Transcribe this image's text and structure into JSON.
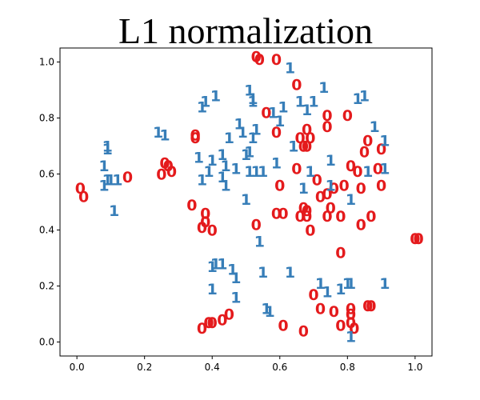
{
  "chart_data": {
    "type": "scatter",
    "title": "L1 normalization",
    "xlabel": "",
    "ylabel": "",
    "xlim": [
      -0.05,
      1.05
    ],
    "ylim": [
      -0.05,
      1.05
    ],
    "xticks": [
      0.0,
      0.2,
      0.4,
      0.6,
      0.8,
      1.0
    ],
    "xtick_labels": [
      "0.0",
      "0.2",
      "0.4",
      "0.6",
      "0.8",
      "1.0"
    ],
    "yticks": [
      0.0,
      0.2,
      0.4,
      0.6,
      0.8,
      1.0
    ],
    "ytick_labels": [
      "0.0",
      "0.2",
      "0.4",
      "0.6",
      "0.8",
      "1.0"
    ],
    "grid": false,
    "legend": "none",
    "series": [
      {
        "label": "0",
        "color": "#e41a1c",
        "points": [
          [
            0.53,
            1.02
          ],
          [
            0.54,
            1.01
          ],
          [
            0.59,
            1.01
          ],
          [
            0.65,
            0.92
          ],
          [
            0.56,
            0.82
          ],
          [
            0.74,
            0.81
          ],
          [
            0.8,
            0.81
          ],
          [
            0.74,
            0.77
          ],
          [
            0.59,
            0.75
          ],
          [
            0.68,
            0.76
          ],
          [
            0.35,
            0.74
          ],
          [
            0.35,
            0.73
          ],
          [
            0.66,
            0.73
          ],
          [
            0.69,
            0.73
          ],
          [
            0.67,
            0.7
          ],
          [
            0.68,
            0.7
          ],
          [
            0.86,
            0.72
          ],
          [
            0.9,
            0.69
          ],
          [
            0.85,
            0.68
          ],
          [
            0.26,
            0.64
          ],
          [
            0.27,
            0.63
          ],
          [
            0.28,
            0.61
          ],
          [
            0.25,
            0.6
          ],
          [
            0.15,
            0.59
          ],
          [
            0.65,
            0.62
          ],
          [
            0.81,
            0.63
          ],
          [
            0.83,
            0.61
          ],
          [
            0.89,
            0.62
          ],
          [
            0.71,
            0.58
          ],
          [
            0.76,
            0.55
          ],
          [
            0.79,
            0.56
          ],
          [
            0.01,
            0.55
          ],
          [
            0.02,
            0.52
          ],
          [
            0.6,
            0.56
          ],
          [
            0.74,
            0.53
          ],
          [
            0.84,
            0.55
          ],
          [
            0.9,
            0.56
          ],
          [
            0.72,
            0.52
          ],
          [
            0.34,
            0.49
          ],
          [
            0.75,
            0.48
          ],
          [
            0.67,
            0.48
          ],
          [
            0.68,
            0.47
          ],
          [
            0.38,
            0.46
          ],
          [
            0.59,
            0.46
          ],
          [
            0.61,
            0.46
          ],
          [
            0.66,
            0.45
          ],
          [
            0.68,
            0.45
          ],
          [
            0.74,
            0.45
          ],
          [
            0.78,
            0.45
          ],
          [
            0.87,
            0.45
          ],
          [
            0.84,
            0.42
          ],
          [
            0.38,
            0.43
          ],
          [
            0.37,
            0.41
          ],
          [
            0.53,
            0.42
          ],
          [
            0.4,
            0.4
          ],
          [
            0.69,
            0.4
          ],
          [
            1.0,
            0.37
          ],
          [
            1.01,
            0.37
          ],
          [
            0.78,
            0.32
          ],
          [
            0.7,
            0.17
          ],
          [
            0.72,
            0.12
          ],
          [
            0.76,
            0.11
          ],
          [
            0.81,
            0.12
          ],
          [
            0.81,
            0.1
          ],
          [
            0.86,
            0.13
          ],
          [
            0.87,
            0.13
          ],
          [
            0.45,
            0.1
          ],
          [
            0.43,
            0.08
          ],
          [
            0.39,
            0.07
          ],
          [
            0.4,
            0.07
          ],
          [
            0.37,
            0.05
          ],
          [
            0.61,
            0.06
          ],
          [
            0.67,
            0.04
          ],
          [
            0.81,
            0.07
          ],
          [
            0.78,
            0.06
          ],
          [
            0.82,
            0.05
          ]
        ]
      },
      {
        "label": "1",
        "color": "#377eb8",
        "points": [
          [
            0.63,
            0.98
          ],
          [
            0.73,
            0.91
          ],
          [
            0.51,
            0.9
          ],
          [
            0.41,
            0.88
          ],
          [
            0.52,
            0.87
          ],
          [
            0.85,
            0.88
          ],
          [
            0.83,
            0.87
          ],
          [
            0.38,
            0.86
          ],
          [
            0.37,
            0.84
          ],
          [
            0.52,
            0.86
          ],
          [
            0.66,
            0.86
          ],
          [
            0.7,
            0.86
          ],
          [
            0.61,
            0.84
          ],
          [
            0.68,
            0.83
          ],
          [
            0.58,
            0.82
          ],
          [
            0.6,
            0.79
          ],
          [
            0.48,
            0.78
          ],
          [
            0.88,
            0.77
          ],
          [
            0.24,
            0.75
          ],
          [
            0.26,
            0.74
          ],
          [
            0.49,
            0.75
          ],
          [
            0.53,
            0.76
          ],
          [
            0.45,
            0.73
          ],
          [
            0.52,
            0.73
          ],
          [
            0.91,
            0.72
          ],
          [
            0.64,
            0.7
          ],
          [
            0.09,
            0.69
          ],
          [
            0.09,
            0.7
          ],
          [
            0.51,
            0.68
          ],
          [
            0.43,
            0.67
          ],
          [
            0.5,
            0.67
          ],
          [
            0.36,
            0.66
          ],
          [
            0.4,
            0.65
          ],
          [
            0.75,
            0.65
          ],
          [
            0.59,
            0.64
          ],
          [
            0.08,
            0.63
          ],
          [
            0.44,
            0.63
          ],
          [
            0.47,
            0.62
          ],
          [
            0.91,
            0.62
          ],
          [
            0.55,
            0.61
          ],
          [
            0.39,
            0.61
          ],
          [
            0.51,
            0.61
          ],
          [
            0.53,
            0.61
          ],
          [
            0.69,
            0.61
          ],
          [
            0.86,
            0.61
          ],
          [
            0.43,
            0.59
          ],
          [
            0.09,
            0.58
          ],
          [
            0.1,
            0.58
          ],
          [
            0.08,
            0.56
          ],
          [
            0.12,
            0.58
          ],
          [
            0.37,
            0.58
          ],
          [
            0.44,
            0.56
          ],
          [
            0.75,
            0.56
          ],
          [
            0.67,
            0.55
          ],
          [
            0.81,
            0.51
          ],
          [
            0.5,
            0.51
          ],
          [
            0.11,
            0.47
          ],
          [
            0.54,
            0.36
          ],
          [
            0.4,
            0.27
          ],
          [
            0.41,
            0.28
          ],
          [
            0.43,
            0.28
          ],
          [
            0.46,
            0.26
          ],
          [
            0.55,
            0.25
          ],
          [
            0.63,
            0.25
          ],
          [
            0.47,
            0.23
          ],
          [
            0.4,
            0.19
          ],
          [
            0.72,
            0.21
          ],
          [
            0.8,
            0.21
          ],
          [
            0.81,
            0.21
          ],
          [
            0.91,
            0.21
          ],
          [
            0.74,
            0.18
          ],
          [
            0.78,
            0.19
          ],
          [
            0.47,
            0.16
          ],
          [
            0.56,
            0.12
          ],
          [
            0.57,
            0.11
          ],
          [
            0.81,
            0.02
          ]
        ]
      }
    ]
  }
}
